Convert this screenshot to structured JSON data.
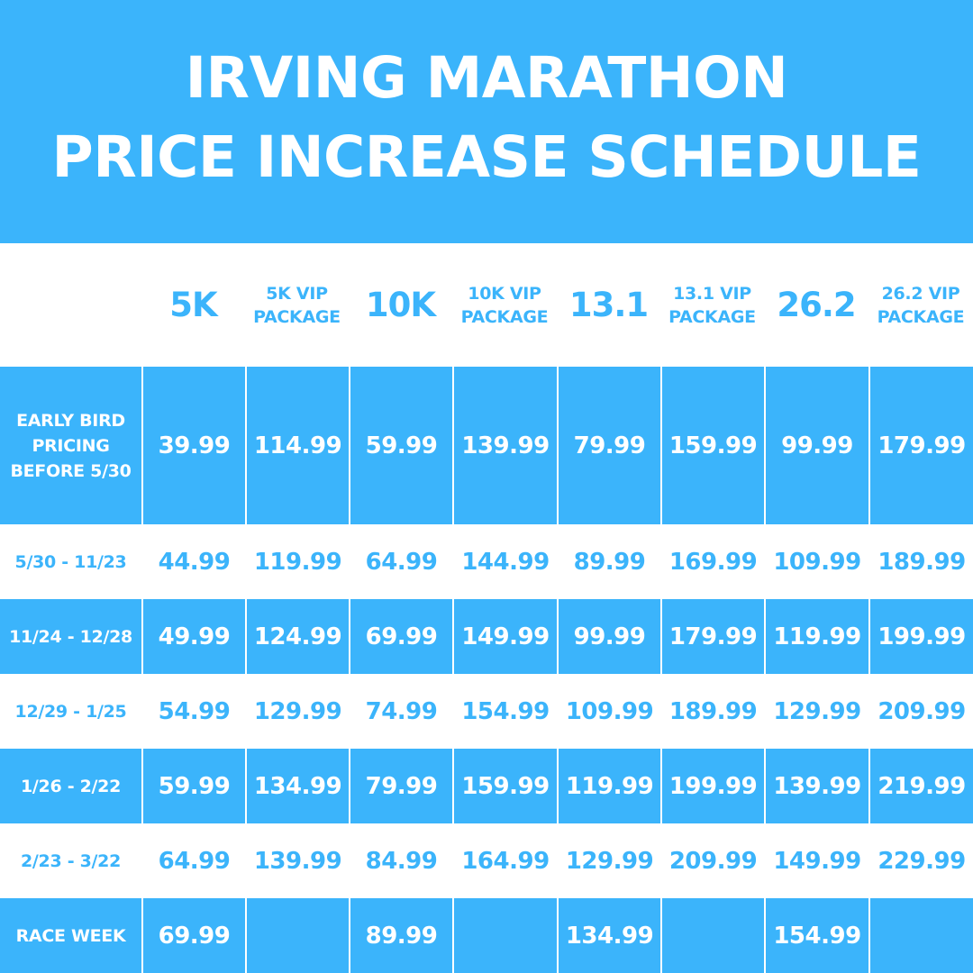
{
  "title": {
    "line1": "IRVING MARATHON",
    "line2": "PRICE INCREASE SCHEDULE"
  },
  "columns": [
    "5K",
    "5K VIP PACKAGE",
    "10K",
    "10K VIP PACKAGE",
    "13.1",
    "13.1 VIP PACKAGE",
    "26.2",
    "26.2 VIP PACKAGE"
  ],
  "rows": [
    {
      "label": "EARLY BIRD PRICING BEFORE 5/30",
      "values": [
        "39.99",
        "114.99",
        "59.99",
        "139.99",
        "79.99",
        "159.99",
        "99.99",
        "179.99"
      ]
    },
    {
      "label": "5/30 - 11/23",
      "values": [
        "44.99",
        "119.99",
        "64.99",
        "144.99",
        "89.99",
        "169.99",
        "109.99",
        "189.99"
      ]
    },
    {
      "label": "11/24 - 12/28",
      "values": [
        "49.99",
        "124.99",
        "69.99",
        "149.99",
        "99.99",
        "179.99",
        "119.99",
        "199.99"
      ]
    },
    {
      "label": "12/29 - 1/25",
      "values": [
        "54.99",
        "129.99",
        "74.99",
        "154.99",
        "109.99",
        "189.99",
        "129.99",
        "209.99"
      ]
    },
    {
      "label": "1/26 - 2/22",
      "values": [
        "59.99",
        "134.99",
        "79.99",
        "159.99",
        "119.99",
        "199.99",
        "139.99",
        "219.99"
      ]
    },
    {
      "label": "2/23 - 3/22",
      "values": [
        "64.99",
        "139.99",
        "84.99",
        "164.99",
        "129.99",
        "209.99",
        "149.99",
        "229.99"
      ]
    },
    {
      "label": "RACE WEEK",
      "values": [
        "69.99",
        "",
        "89.99",
        "",
        "134.99",
        "",
        "154.99",
        ""
      ]
    }
  ],
  "colors": {
    "brand_blue": "#3bb4fb",
    "white": "#ffffff"
  }
}
